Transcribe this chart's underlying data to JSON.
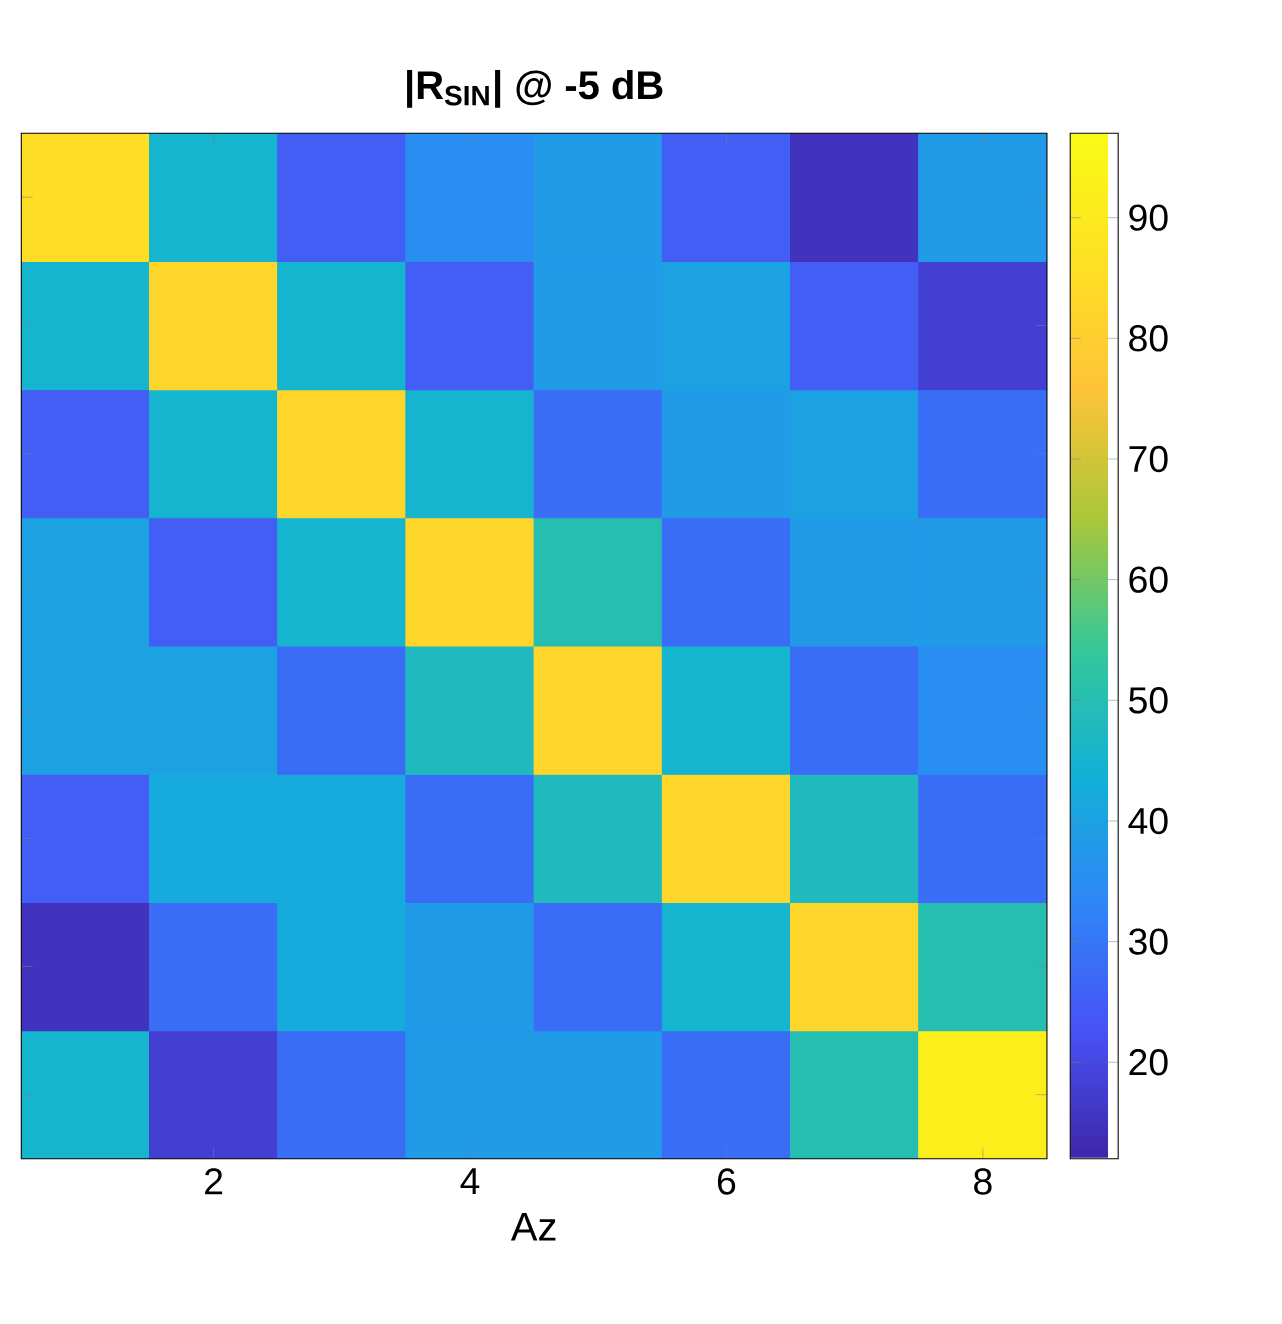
{
  "chart_data": {
    "type": "heatmap",
    "title": "|R$_{SIN}$|  @  -5  dB",
    "xlabel": "Az",
    "categories": [
      null,
      "2",
      null,
      "4",
      null,
      "6",
      null,
      "8"
    ],
    "y_categories": [
      null,
      null,
      null,
      null,
      null,
      null,
      null,
      null
    ],
    "cells": [
      [
        85,
        45,
        25,
        35,
        38,
        25,
        15,
        38
      ],
      [
        45,
        82,
        45,
        25,
        38,
        40,
        25,
        18
      ],
      [
        25,
        45,
        82,
        45,
        28,
        38,
        40,
        28
      ],
      [
        40,
        25,
        45,
        82,
        50,
        28,
        38,
        38
      ],
      [
        40,
        40,
        28,
        48,
        82,
        45,
        28,
        35
      ],
      [
        25,
        42,
        42,
        28,
        48,
        82,
        48,
        28
      ],
      [
        15,
        28,
        42,
        38,
        28,
        45,
        82,
        50
      ],
      [
        45,
        18,
        28,
        38,
        38,
        28,
        50,
        92
      ]
    ],
    "clim": [
      12,
      97
    ],
    "cticks": [
      20,
      30,
      40,
      50,
      60,
      70,
      80,
      90
    ],
    "tick_labels": "x"
  }
}
